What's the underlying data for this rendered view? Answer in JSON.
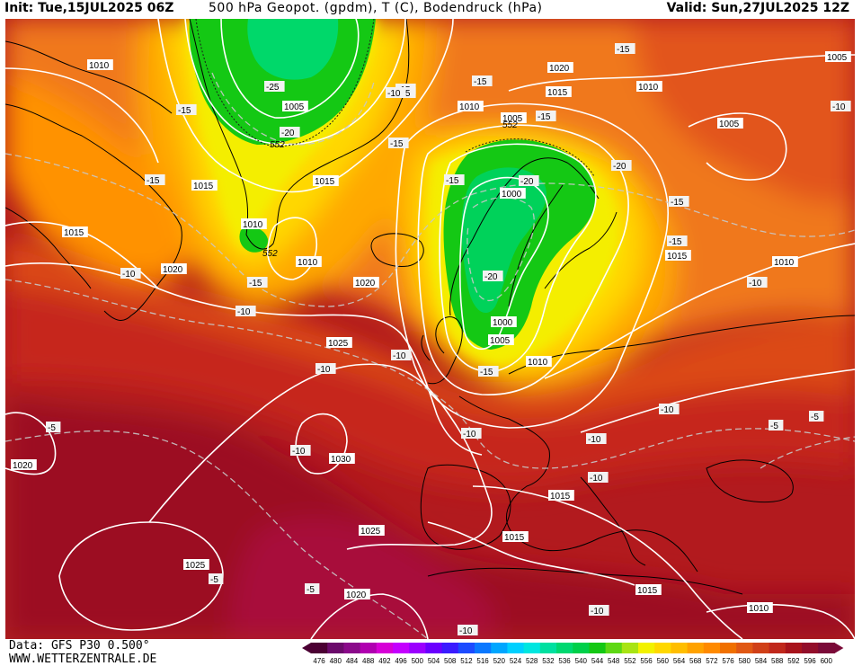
{
  "header": {
    "init": "Init: Tue,15JUL2025 06Z",
    "title": "500 hPa Geopot. (gpdm), T (C), Bodendruck (hPa)",
    "valid": "Valid: Sun,27JUL2025 12Z"
  },
  "footer": {
    "data_source": "Data: GFS P30 0.500°",
    "website": "WWW.WETTERZENTRALE.DE"
  },
  "legend": {
    "values": [
      "476",
      "480",
      "484",
      "488",
      "492",
      "496",
      "500",
      "504",
      "508",
      "512",
      "516",
      "520",
      "524",
      "528",
      "532",
      "536",
      "540",
      "544",
      "548",
      "552",
      "556",
      "560",
      "564",
      "568",
      "572",
      "576",
      "580",
      "584",
      "588",
      "592",
      "596",
      "600"
    ],
    "colors": [
      "#4b0033",
      "#6b0b6b",
      "#8a0a8a",
      "#b000b0",
      "#d600d6",
      "#c400ff",
      "#9b00ff",
      "#6a00ff",
      "#3a1bff",
      "#1c4bff",
      "#0a78ff",
      "#00a6ff",
      "#00d0ff",
      "#00e6e0",
      "#00e0a0",
      "#00d870",
      "#00d04a",
      "#14c814",
      "#5ed814",
      "#a8e414",
      "#f2f200",
      "#ffd800",
      "#ffbe00",
      "#ffa200",
      "#ff8a00",
      "#f07000",
      "#e05814",
      "#d04018",
      "#c0281c",
      "#a8141c",
      "#920e2a",
      "#7a0a38"
    ]
  },
  "pressure_labels": [
    {
      "id": "p-1010-a",
      "text": "1010"
    },
    {
      "id": "p-1005-a",
      "text": "1005"
    },
    {
      "id": "p-1015-a",
      "text": "1015"
    },
    {
      "id": "p-1010-b",
      "text": "1010"
    },
    {
      "id": "p-1015-b",
      "text": "1015"
    },
    {
      "id": "p-1010-c",
      "text": "1010"
    },
    {
      "id": "p-1015-c",
      "text": "1015"
    },
    {
      "id": "p-1020-a",
      "text": "1020"
    },
    {
      "id": "p-1020-b",
      "text": "1020"
    },
    {
      "id": "p-1025-a",
      "text": "1025"
    },
    {
      "id": "p-1020-c",
      "text": "1020"
    },
    {
      "id": "p-1030",
      "text": "1030"
    },
    {
      "id": "p-1025-b",
      "text": "1025"
    },
    {
      "id": "p-1025-c",
      "text": "1025"
    },
    {
      "id": "p-1020-d",
      "text": "1020"
    },
    {
      "id": "p-1020-e",
      "text": "1020"
    },
    {
      "id": "p-1015-d",
      "text": "1015"
    },
    {
      "id": "p-1010-d",
      "text": "1010"
    },
    {
      "id": "p-1005-b",
      "text": "1005"
    },
    {
      "id": "p-1010-e",
      "text": "1010"
    },
    {
      "id": "p-1005-c",
      "text": "1005"
    },
    {
      "id": "p-1000-a",
      "text": "1000"
    },
    {
      "id": "p-1000-b",
      "text": "1000"
    },
    {
      "id": "p-1005-d",
      "text": "1005"
    },
    {
      "id": "p-1010-f",
      "text": "1010"
    },
    {
      "id": "p-1015-e",
      "text": "1015"
    },
    {
      "id": "p-1010-g",
      "text": "1010"
    },
    {
      "id": "p-1005-e",
      "text": "1005"
    },
    {
      "id": "p-1015-f",
      "text": "1015"
    },
    {
      "id": "p-1015-g",
      "text": "1015"
    },
    {
      "id": "p-1015-h",
      "text": "1015"
    },
    {
      "id": "p-1010-h",
      "text": "1010"
    }
  ],
  "temp_labels": [
    {
      "id": "t-a",
      "text": "-15"
    },
    {
      "id": "t-b",
      "text": "-15"
    },
    {
      "id": "t-c",
      "text": "-15"
    },
    {
      "id": "t-d",
      "text": "-10"
    },
    {
      "id": "t-e",
      "text": "-10"
    },
    {
      "id": "t-f",
      "text": "-15"
    },
    {
      "id": "t-g",
      "text": "-10"
    },
    {
      "id": "t-h",
      "text": "-10"
    },
    {
      "id": "t-i",
      "text": "-10"
    },
    {
      "id": "t-j",
      "text": "-10"
    },
    {
      "id": "t-k",
      "text": "-5"
    },
    {
      "id": "t-l",
      "text": "-5"
    },
    {
      "id": "t-m",
      "text": "-5"
    },
    {
      "id": "t-n",
      "text": "-25"
    },
    {
      "id": "t-o",
      "text": "-20"
    },
    {
      "id": "t-p",
      "text": "-15"
    },
    {
      "id": "t-q",
      "text": "-15"
    },
    {
      "id": "t-r",
      "text": "-15"
    },
    {
      "id": "t-s",
      "text": "-15"
    },
    {
      "id": "t-t",
      "text": "-15"
    },
    {
      "id": "t-u",
      "text": "-15"
    },
    {
      "id": "t-v",
      "text": "-20"
    },
    {
      "id": "t-w",
      "text": "-20"
    },
    {
      "id": "t-x",
      "text": "-20"
    },
    {
      "id": "t-y",
      "text": "-15"
    },
    {
      "id": "t-z",
      "text": "-15"
    },
    {
      "id": "t-aa",
      "text": "-15"
    },
    {
      "id": "t-ab",
      "text": "-10"
    },
    {
      "id": "t-ac",
      "text": "-10"
    },
    {
      "id": "t-ad",
      "text": "-10"
    },
    {
      "id": "t-ae",
      "text": "-10"
    },
    {
      "id": "t-af",
      "text": "-5"
    },
    {
      "id": "t-ag",
      "text": "-5"
    },
    {
      "id": "t-ah",
      "text": "-10"
    },
    {
      "id": "t-ai",
      "text": "-10"
    },
    {
      "id": "t-aj",
      "text": "-10"
    },
    {
      "id": "t-ak",
      "text": "-10"
    }
  ],
  "geopot_labels": [
    {
      "id": "g-552-a",
      "text": "552"
    },
    {
      "id": "g-552-b",
      "text": "552"
    },
    {
      "id": "g-552-c",
      "text": "552"
    }
  ]
}
